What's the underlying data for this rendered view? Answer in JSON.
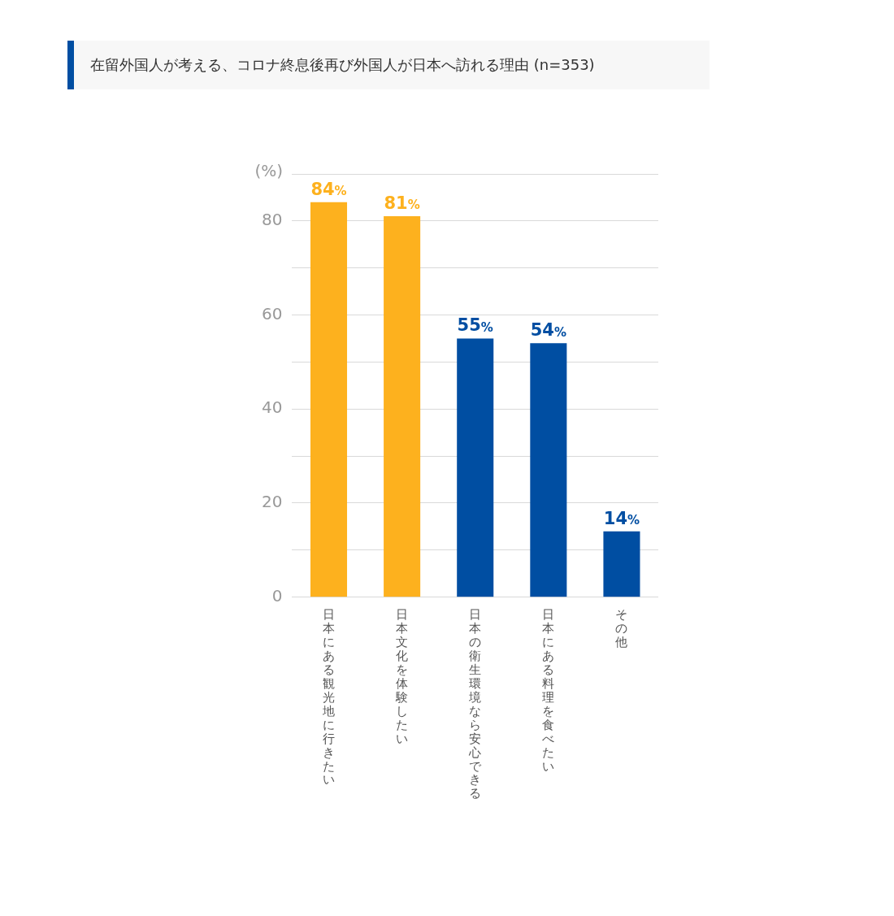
{
  "chart_data": {
    "type": "bar",
    "title": "在留外国人が考える、コロナ終息後再び外国人が日本へ訪れる理由 (n=353)",
    "ylabel": "(%)",
    "categories": [
      "日本にある観光地に行きたい",
      "日本文化を体験したい",
      "日本の衛生環境なら安心できる",
      "日本にある料理を食べたい",
      "その他"
    ],
    "values": [
      84,
      81,
      55,
      54,
      14
    ],
    "colors": [
      "#fdb11e",
      "#fdb11e",
      "#004ea2",
      "#004ea2",
      "#004ea2"
    ],
    "value_labels": [
      "84%",
      "81%",
      "55%",
      "54%",
      "14%"
    ],
    "ylim": [
      0,
      90
    ],
    "yticks": [
      0,
      {
        "value": 10,
        "label": null
      },
      20,
      {
        "value": 30,
        "label": null
      },
      40,
      {
        "value": 50,
        "label": null
      },
      60,
      {
        "value": 70,
        "label": null
      },
      80,
      {
        "value": 90,
        "label": null
      }
    ],
    "grid": "y",
    "legend": false
  }
}
